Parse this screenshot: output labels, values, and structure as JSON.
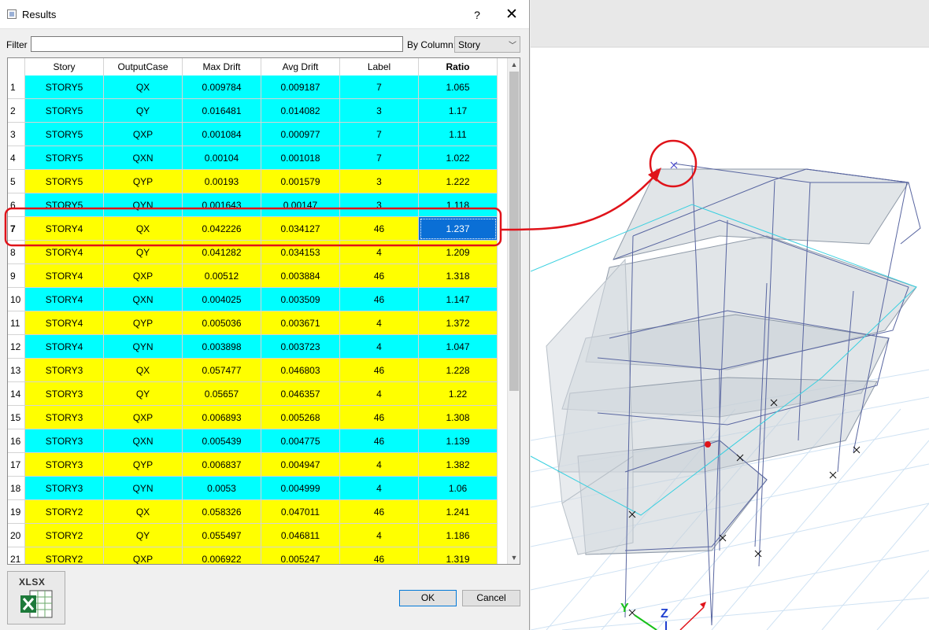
{
  "window": {
    "title": "Results",
    "help_label": "?",
    "close_label": "✕"
  },
  "filter": {
    "label": "Filter",
    "value": "",
    "placeholder": ""
  },
  "by_column": {
    "label": "By Column:",
    "selected": "Story"
  },
  "grid": {
    "columns": [
      "Story",
      "OutputCase",
      "Max Drift",
      "Avg Drift",
      "Label",
      "Ratio"
    ],
    "rows": [
      {
        "n": "1",
        "story": "STORY5",
        "case": "QX",
        "max": "0.009784",
        "avg": "0.009187",
        "label": "7",
        "ratio": "1.065",
        "color": "#00ffff"
      },
      {
        "n": "2",
        "story": "STORY5",
        "case": "QY",
        "max": "0.016481",
        "avg": "0.014082",
        "label": "3",
        "ratio": "1.17",
        "color": "#00ffff"
      },
      {
        "n": "3",
        "story": "STORY5",
        "case": "QXP",
        "max": "0.001084",
        "avg": "0.000977",
        "label": "7",
        "ratio": "1.11",
        "color": "#00ffff"
      },
      {
        "n": "4",
        "story": "STORY5",
        "case": "QXN",
        "max": "0.00104",
        "avg": "0.001018",
        "label": "7",
        "ratio": "1.022",
        "color": "#00ffff"
      },
      {
        "n": "5",
        "story": "STORY5",
        "case": "QYP",
        "max": "0.00193",
        "avg": "0.001579",
        "label": "3",
        "ratio": "1.222",
        "color": "#ffff00"
      },
      {
        "n": "6",
        "story": "STORY5",
        "case": "QYN",
        "max": "0.001643",
        "avg": "0.00147",
        "label": "3",
        "ratio": "1.118",
        "color": "#00ffff"
      },
      {
        "n": "7",
        "story": "STORY4",
        "case": "QX",
        "max": "0.042226",
        "avg": "0.034127",
        "label": "46",
        "ratio": "1.237",
        "color": "#ffff00",
        "selected": true
      },
      {
        "n": "8",
        "story": "STORY4",
        "case": "QY",
        "max": "0.041282",
        "avg": "0.034153",
        "label": "4",
        "ratio": "1.209",
        "color": "#ffff00"
      },
      {
        "n": "9",
        "story": "STORY4",
        "case": "QXP",
        "max": "0.00512",
        "avg": "0.003884",
        "label": "46",
        "ratio": "1.318",
        "color": "#ffff00"
      },
      {
        "n": "10",
        "story": "STORY4",
        "case": "QXN",
        "max": "0.004025",
        "avg": "0.003509",
        "label": "46",
        "ratio": "1.147",
        "color": "#00ffff"
      },
      {
        "n": "11",
        "story": "STORY4",
        "case": "QYP",
        "max": "0.005036",
        "avg": "0.003671",
        "label": "4",
        "ratio": "1.372",
        "color": "#ffff00"
      },
      {
        "n": "12",
        "story": "STORY4",
        "case": "QYN",
        "max": "0.003898",
        "avg": "0.003723",
        "label": "4",
        "ratio": "1.047",
        "color": "#00ffff"
      },
      {
        "n": "13",
        "story": "STORY3",
        "case": "QX",
        "max": "0.057477",
        "avg": "0.046803",
        "label": "46",
        "ratio": "1.228",
        "color": "#ffff00"
      },
      {
        "n": "14",
        "story": "STORY3",
        "case": "QY",
        "max": "0.05657",
        "avg": "0.046357",
        "label": "4",
        "ratio": "1.22",
        "color": "#ffff00"
      },
      {
        "n": "15",
        "story": "STORY3",
        "case": "QXP",
        "max": "0.006893",
        "avg": "0.005268",
        "label": "46",
        "ratio": "1.308",
        "color": "#ffff00"
      },
      {
        "n": "16",
        "story": "STORY3",
        "case": "QXN",
        "max": "0.005439",
        "avg": "0.004775",
        "label": "46",
        "ratio": "1.139",
        "color": "#00ffff"
      },
      {
        "n": "17",
        "story": "STORY3",
        "case": "QYP",
        "max": "0.006837",
        "avg": "0.004947",
        "label": "4",
        "ratio": "1.382",
        "color": "#ffff00"
      },
      {
        "n": "18",
        "story": "STORY3",
        "case": "QYN",
        "max": "0.0053",
        "avg": "0.004999",
        "label": "4",
        "ratio": "1.06",
        "color": "#00ffff"
      },
      {
        "n": "19",
        "story": "STORY2",
        "case": "QX",
        "max": "0.058326",
        "avg": "0.047011",
        "label": "46",
        "ratio": "1.241",
        "color": "#ffff00"
      },
      {
        "n": "20",
        "story": "STORY2",
        "case": "QY",
        "max": "0.055497",
        "avg": "0.046811",
        "label": "4",
        "ratio": "1.186",
        "color": "#ffff00"
      },
      {
        "n": "21",
        "story": "STORY2",
        "case": "QXP",
        "max": "0.006922",
        "avg": "0.005247",
        "label": "46",
        "ratio": "1.319",
        "color": "#ffff00"
      }
    ]
  },
  "footer": {
    "xlsx_label": "XLSX",
    "ok_label": "OK",
    "cancel_label": "Cancel"
  },
  "viewport": {
    "axis_y_label": "Y",
    "axis_z_label": "Z"
  },
  "colors": {
    "highlight_cyan": "#00ffff",
    "highlight_yellow": "#ffff00",
    "selection_blue": "#0a6fd6",
    "annotation_red": "#e0131a"
  }
}
